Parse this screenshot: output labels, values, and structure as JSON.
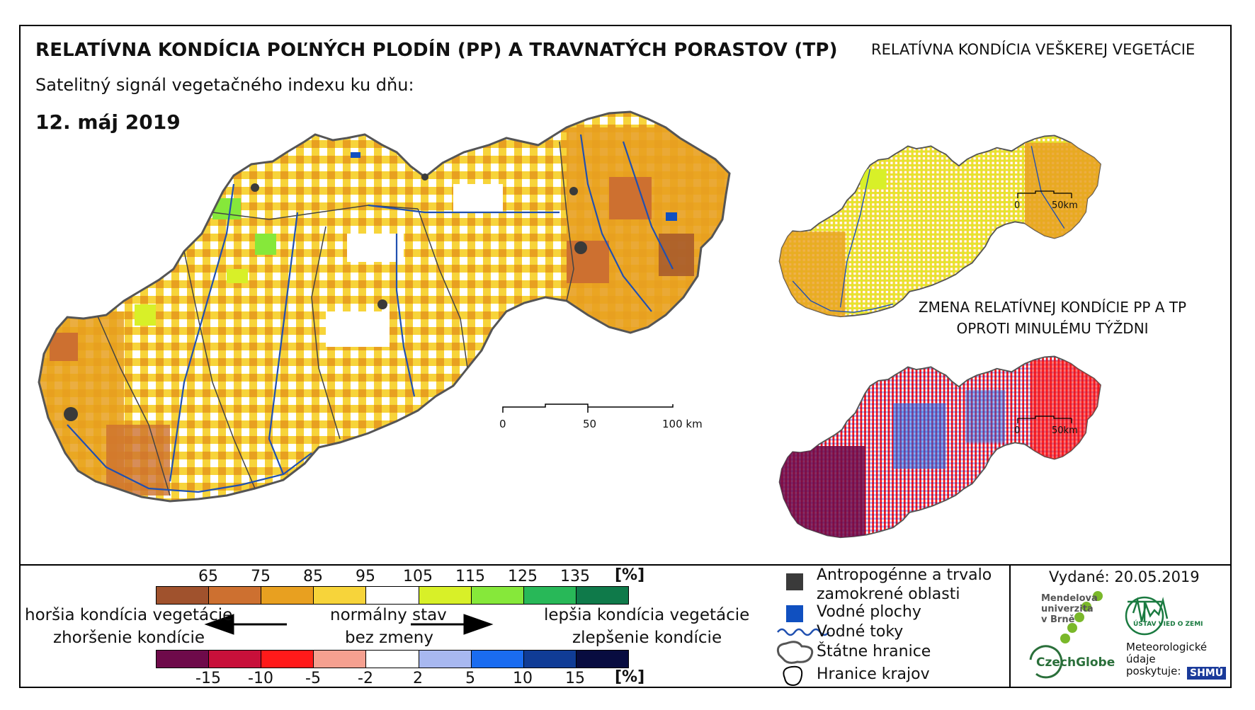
{
  "title": "RELATÍVNA KONDÍCIA POĽNÝCH PLODÍN (PP) A TRAVNATÝCH PORASTOV (TP)",
  "subtitle": "Satelitný signál vegetačného indexu ku dňu:",
  "date": "12. máj 2019",
  "inset_vegetation": {
    "title": "RELATÍVNA KONDÍCIA VEŠKEREJ VEGETÁCIE",
    "scale": {
      "start": "0",
      "end": "50km"
    }
  },
  "inset_change": {
    "title_line1": "ZMENA RELATÍVNEJ KONDÍCIE PP A TP",
    "title_line2": "OPROTI MINULÉMU TÝŽDNI",
    "scale": {
      "start": "0",
      "end": "50km"
    }
  },
  "main_scale": {
    "labels": [
      "0",
      "50",
      "100 km"
    ]
  },
  "condition_legend": {
    "unit": "[%]",
    "ticks": [
      "65",
      "75",
      "85",
      "95",
      "105",
      "115",
      "125",
      "135"
    ],
    "colors": [
      "#a0522d",
      "#cd7030",
      "#e8a020",
      "#f7d43a",
      "#ffffff",
      "#d8f028",
      "#86e83a",
      "#28b858",
      "#0f7a4a"
    ]
  },
  "change_legend": {
    "unit": "[%]",
    "ticks": [
      "-15",
      "-10",
      "-5",
      "-2",
      "2",
      "5",
      "10",
      "15"
    ],
    "colors": [
      "#6e0a4a",
      "#c8103a",
      "#ff1a1a",
      "#f5a090",
      "#ffffff",
      "#a8b8f0",
      "#1a6cf0",
      "#103c96",
      "#080c40"
    ]
  },
  "scale_texts": {
    "worse_condition": "horšia kondícia vegetácie",
    "worse_change": "zhoršenie kondície",
    "normal": "normálny stav",
    "no_change": "bez zmeny",
    "better_condition": "lepšia kondícia vegetácie",
    "better_change": "zlepšenie kondície"
  },
  "map_legend": {
    "anthropogenic_line1": "Antropogénne a trvalo",
    "anthropogenic_line2": "zamokrené oblasti",
    "water_bodies": "Vodné plochy",
    "rivers": "Vodné toky",
    "state_borders": "Štátne hranice",
    "region_borders": "Hranice krajov",
    "colors": {
      "anthropogenic": "#3a3a3a",
      "water": "#1050c0",
      "river": "#2050b0"
    }
  },
  "issued": "Vydané: 20.05.2019",
  "logos": {
    "mendel_line1": "Mendelova",
    "mendel_line2": "univerzita",
    "mendel_line3": "v Brně",
    "czechglobe": "CzechGlobe",
    "ustav": "ÚSTAV VIED O ZEMI",
    "meteo_line1": "Meteorologické",
    "meteo_line2": "údaje",
    "meteo_line3": "poskytuje:",
    "shmu": "SHMÚ"
  }
}
